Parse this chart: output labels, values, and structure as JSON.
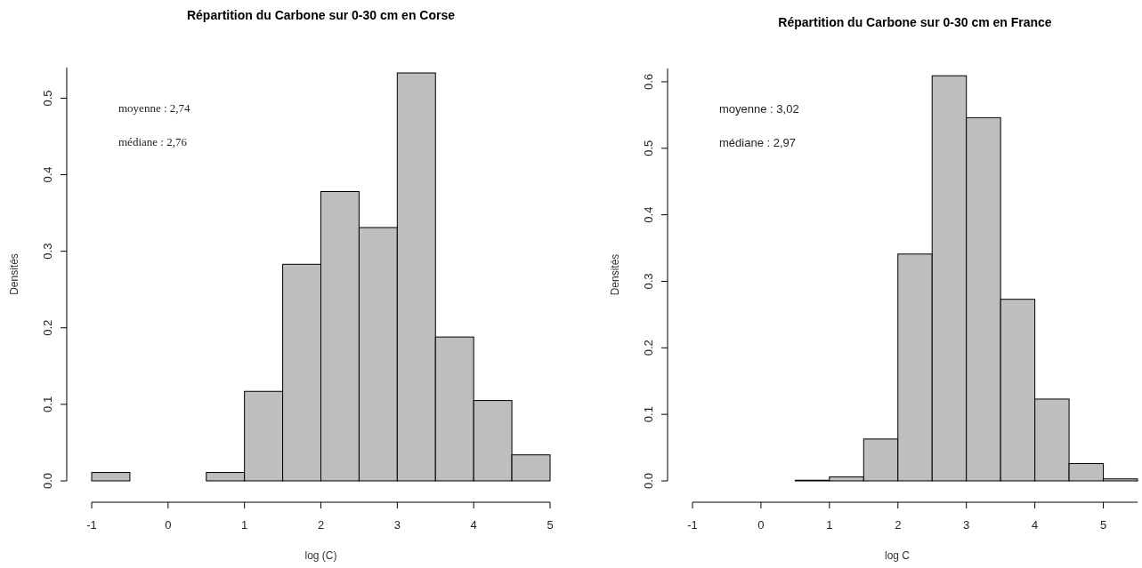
{
  "chart_data": [
    {
      "type": "histogram",
      "title": "Répartition du Carbone sur 0-30 cm en Corse",
      "xlabel": "log (C)",
      "ylabel": "Densités",
      "annotations": [
        "moyenne : 2,74",
        "médiane : 2,76"
      ],
      "color": "#bebebe",
      "bins": [
        -1,
        -0.5,
        0,
        0.5,
        1,
        1.5,
        2,
        2.5,
        3,
        3.5,
        4,
        4.5,
        5
      ],
      "values": [
        0.011,
        0,
        0,
        0.011,
        0.117,
        0.283,
        0.378,
        0.331,
        0.533,
        0.188,
        0.105,
        0.034
      ],
      "xlim": [
        -1,
        5
      ],
      "xticks": [
        -1,
        0,
        1,
        2,
        3,
        4,
        5
      ],
      "ylim": [
        0,
        0.54
      ],
      "yticks": [
        {
          "value": 0,
          "label": "0.0"
        },
        0.1,
        0.2,
        0.3,
        0.4,
        0.5
      ]
    },
    {
      "type": "histogram",
      "title": "Répartition du Carbone sur 0-30 cm en France",
      "xlabel": "log C",
      "ylabel": "Densités",
      "annotations": [
        "moyenne : 3,02",
        "médiane : 2,97"
      ],
      "color": "#bebebe",
      "bins": [
        -1,
        -0.5,
        0,
        0.5,
        1,
        1.5,
        2,
        2.5,
        3,
        3.5,
        4,
        4.5,
        5,
        5.5
      ],
      "values": [
        0,
        0,
        0,
        0.001,
        0.006,
        0.063,
        0.341,
        0.609,
        0.546,
        0.273,
        0.123,
        0.026,
        0.003
      ],
      "xlim": [
        -1,
        5.5
      ],
      "xticks": [
        -1,
        0,
        1,
        2,
        3,
        4,
        5
      ],
      "ylim": [
        0,
        0.62
      ],
      "yticks": [
        {
          "value": 0,
          "label": "0.0"
        },
        0.1,
        0.2,
        0.3,
        0.4,
        0.5,
        0.6
      ]
    }
  ]
}
